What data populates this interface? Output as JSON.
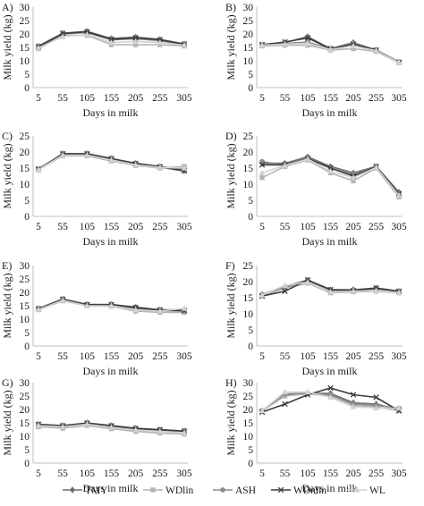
{
  "figure": {
    "legend": [
      {
        "name": "TMY",
        "color": "#6e6e6e",
        "marker": "diamond"
      },
      {
        "name": "WDlin",
        "color": "#b4b4b4",
        "marker": "square"
      },
      {
        "name": "ASH",
        "color": "#8c8c8c",
        "marker": "circle"
      },
      {
        "name": "WDnlin",
        "color": "#3c3c3c",
        "marker": "x"
      },
      {
        "name": "WL",
        "color": "#d2d2d2",
        "marker": "triangle"
      }
    ]
  },
  "chart_data": [
    {
      "type": "line",
      "panel_label": "A)",
      "xlabel": "Days in milk",
      "ylabel": "Milk yield (kg)",
      "x": [
        5,
        55,
        105,
        155,
        205,
        255,
        305
      ],
      "ylim": [
        0,
        30
      ],
      "yticks": [
        0,
        5,
        10,
        15,
        20,
        25,
        30
      ],
      "grid": false,
      "series": [
        {
          "name": "TMY",
          "values": [
            15.5,
            20.3,
            21.0,
            18.3,
            18.8,
            18.0,
            16.3
          ]
        },
        {
          "name": "WDlin",
          "values": [
            14.5,
            19.5,
            19.5,
            16.0,
            16.0,
            16.0,
            15.5
          ]
        },
        {
          "name": "ASH",
          "values": [
            15.0,
            20.0,
            20.5,
            17.8,
            18.2,
            17.5,
            16.0
          ]
        },
        {
          "name": "WDnlin",
          "values": [
            15.2,
            20.2,
            20.8,
            18.0,
            18.6,
            17.8,
            16.2
          ]
        },
        {
          "name": "WL",
          "values": [
            14.8,
            19.0,
            19.8,
            16.8,
            17.2,
            16.8,
            15.8
          ]
        }
      ]
    },
    {
      "type": "line",
      "panel_label": "B)",
      "xlabel": "Days in milk",
      "ylabel": "Milk yield (kg)",
      "x": [
        5,
        55,
        105,
        155,
        205,
        255,
        305
      ],
      "ylim": [
        0,
        30
      ],
      "yticks": [
        0,
        5,
        10,
        15,
        20,
        25,
        30
      ],
      "grid": false,
      "series": [
        {
          "name": "TMY",
          "values": [
            16.0,
            16.8,
            19.0,
            14.5,
            16.8,
            14.0,
            9.5
          ]
        },
        {
          "name": "WDlin",
          "values": [
            15.5,
            15.8,
            15.8,
            14.0,
            14.5,
            13.5,
            9.3
          ]
        },
        {
          "name": "ASH",
          "values": [
            16.0,
            16.5,
            17.0,
            14.5,
            16.5,
            14.0,
            9.5
          ]
        },
        {
          "name": "WDnlin",
          "values": [
            16.0,
            17.0,
            18.5,
            14.5,
            16.2,
            14.0,
            9.5
          ]
        },
        {
          "name": "WL",
          "values": [
            15.8,
            16.2,
            16.5,
            14.2,
            15.5,
            13.8,
            9.4
          ]
        }
      ]
    },
    {
      "type": "line",
      "panel_label": "C)",
      "xlabel": "Days in milk",
      "ylabel": "Milk yield (kg)",
      "x": [
        5,
        55,
        105,
        155,
        205,
        255,
        305
      ],
      "ylim": [
        0,
        25
      ],
      "yticks": [
        0,
        5,
        10,
        15,
        20,
        25
      ],
      "grid": false,
      "series": [
        {
          "name": "TMY",
          "values": [
            14.5,
            19.5,
            19.5,
            18.0,
            16.5,
            15.5,
            14.5
          ]
        },
        {
          "name": "WDlin",
          "values": [
            14.5,
            18.8,
            18.8,
            17.2,
            15.8,
            15.0,
            15.5
          ]
        },
        {
          "name": "ASH",
          "values": [
            14.8,
            19.3,
            19.5,
            17.8,
            16.3,
            15.3,
            14.0
          ]
        },
        {
          "name": "WDnlin",
          "values": [
            14.6,
            19.4,
            19.4,
            17.9,
            16.4,
            15.4,
            14.2
          ]
        },
        {
          "name": "WL",
          "values": [
            14.5,
            19.0,
            19.0,
            17.5,
            16.0,
            15.2,
            15.0
          ]
        }
      ]
    },
    {
      "type": "line",
      "panel_label": "D)",
      "xlabel": "Days in milk",
      "ylabel": "Milk yield (kg)",
      "x": [
        5,
        55,
        105,
        155,
        205,
        255,
        305
      ],
      "ylim": [
        0,
        25
      ],
      "yticks": [
        0,
        5,
        10,
        15,
        20,
        25
      ],
      "grid": false,
      "series": [
        {
          "name": "TMY",
          "values": [
            16.5,
            16.5,
            18.5,
            15.5,
            13.5,
            15.5,
            7.5
          ]
        },
        {
          "name": "WDlin",
          "values": [
            12.0,
            15.5,
            17.5,
            13.5,
            11.0,
            15.0,
            6.0
          ]
        },
        {
          "name": "ASH",
          "values": [
            17.0,
            16.0,
            18.0,
            15.0,
            13.0,
            15.5,
            7.0
          ]
        },
        {
          "name": "WDnlin",
          "values": [
            16.0,
            16.0,
            18.0,
            15.0,
            12.5,
            15.5,
            7.0
          ]
        },
        {
          "name": "WL",
          "values": [
            13.5,
            15.8,
            17.8,
            14.0,
            12.0,
            15.2,
            6.5
          ]
        }
      ]
    },
    {
      "type": "line",
      "panel_label": "E)",
      "xlabel": "Days in milk",
      "ylabel": "Milk yield (kg)",
      "x": [
        5,
        55,
        105,
        155,
        205,
        255,
        305
      ],
      "ylim": [
        0,
        30
      ],
      "yticks": [
        0,
        5,
        10,
        15,
        20,
        25,
        30
      ],
      "grid": false,
      "series": [
        {
          "name": "TMY",
          "values": [
            14.0,
            17.5,
            15.5,
            15.5,
            14.5,
            13.5,
            13.5
          ]
        },
        {
          "name": "WDlin",
          "values": [
            13.5,
            16.8,
            15.0,
            14.8,
            13.0,
            12.5,
            12.5
          ]
        },
        {
          "name": "ASH",
          "values": [
            14.0,
            17.2,
            15.2,
            15.2,
            14.0,
            13.2,
            13.0
          ]
        },
        {
          "name": "WDnlin",
          "values": [
            13.8,
            17.4,
            15.4,
            15.4,
            14.3,
            13.4,
            13.2
          ]
        },
        {
          "name": "WL",
          "values": [
            13.6,
            17.0,
            15.0,
            15.0,
            13.5,
            13.0,
            14.0
          ]
        }
      ]
    },
    {
      "type": "line",
      "panel_label": "F)",
      "xlabel": "Days in milk",
      "ylabel": "Milk yield (kg)",
      "x": [
        5,
        55,
        105,
        155,
        205,
        255,
        305
      ],
      "ylim": [
        0,
        25
      ],
      "yticks": [
        0,
        5,
        10,
        15,
        20,
        25
      ],
      "grid": false,
      "series": [
        {
          "name": "TMY",
          "values": [
            16.0,
            18.5,
            20.5,
            17.5,
            17.5,
            18.0,
            17.0
          ]
        },
        {
          "name": "WDlin",
          "values": [
            15.5,
            18.0,
            19.5,
            16.5,
            16.8,
            17.0,
            16.5
          ]
        },
        {
          "name": "ASH",
          "values": [
            16.0,
            18.3,
            20.0,
            17.2,
            17.3,
            17.7,
            16.8
          ]
        },
        {
          "name": "WDnlin",
          "values": [
            15.5,
            17.0,
            20.5,
            17.5,
            17.2,
            18.0,
            17.0
          ]
        },
        {
          "name": "WL",
          "values": [
            15.8,
            18.8,
            19.8,
            16.8,
            17.0,
            17.2,
            16.6
          ]
        }
      ]
    },
    {
      "type": "line",
      "panel_label": "G)",
      "xlabel": "Days in milk",
      "ylabel": "Milk yield (kg)",
      "x": [
        5,
        55,
        105,
        155,
        205,
        255,
        305
      ],
      "ylim": [
        0,
        30
      ],
      "yticks": [
        0,
        5,
        10,
        15,
        20,
        25,
        30
      ],
      "grid": false,
      "series": [
        {
          "name": "TMY",
          "values": [
            14.5,
            14.0,
            15.0,
            14.0,
            13.0,
            12.5,
            12.0
          ]
        },
        {
          "name": "WDlin",
          "values": [
            13.5,
            13.0,
            14.0,
            12.8,
            11.8,
            11.2,
            10.8
          ]
        },
        {
          "name": "ASH",
          "values": [
            14.3,
            13.8,
            14.8,
            13.8,
            12.8,
            12.3,
            11.8
          ]
        },
        {
          "name": "WDnlin",
          "values": [
            14.4,
            13.9,
            14.9,
            13.9,
            12.9,
            12.4,
            11.9
          ]
        },
        {
          "name": "WL",
          "values": [
            14.0,
            13.5,
            14.5,
            13.3,
            12.3,
            11.8,
            11.3
          ]
        }
      ]
    },
    {
      "type": "line",
      "panel_label": "H)",
      "xlabel": "Days in milk",
      "ylabel": "Milk yield (kg)",
      "x": [
        5,
        55,
        105,
        155,
        205,
        255,
        305
      ],
      "ylim": [
        0,
        30
      ],
      "yticks": [
        0,
        5,
        10,
        15,
        20,
        25,
        30
      ],
      "grid": false,
      "series": [
        {
          "name": "TMY",
          "values": [
            19.5,
            25.5,
            26.0,
            26.0,
            22.5,
            22.0,
            20.0
          ]
        },
        {
          "name": "WDlin",
          "values": [
            19.5,
            25.0,
            25.8,
            25.0,
            21.5,
            21.0,
            19.5
          ]
        },
        {
          "name": "ASH",
          "values": [
            19.5,
            25.8,
            26.0,
            25.5,
            22.0,
            21.5,
            20.5
          ]
        },
        {
          "name": "WDnlin",
          "values": [
            19.0,
            22.0,
            25.5,
            28.0,
            25.5,
            24.5,
            19.5
          ]
        },
        {
          "name": "WL",
          "values": [
            19.5,
            26.5,
            26.5,
            24.5,
            21.0,
            20.5,
            20.5
          ]
        }
      ]
    }
  ]
}
